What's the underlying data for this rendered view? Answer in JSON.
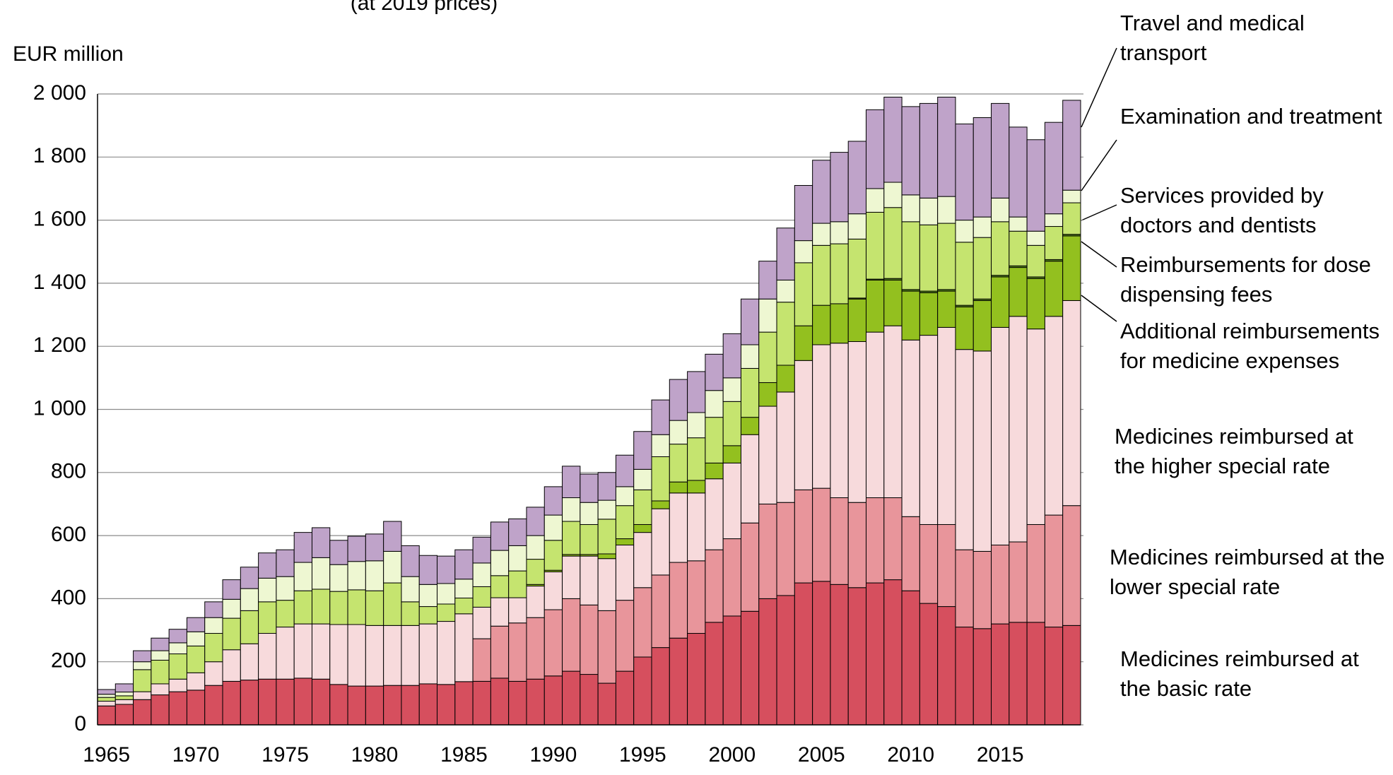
{
  "chart_data": {
    "type": "stacked_bar",
    "subtitle": "(at 2019 prices)",
    "y_label": "EUR million",
    "categories": [
      "1965",
      null,
      null,
      null,
      null,
      "1970",
      null,
      null,
      null,
      null,
      "1975",
      null,
      null,
      null,
      null,
      "1980",
      null,
      null,
      null,
      null,
      "1985",
      null,
      null,
      null,
      null,
      "1990",
      null,
      null,
      null,
      null,
      "1995",
      null,
      null,
      null,
      null,
      "2000",
      null,
      null,
      null,
      null,
      "2005",
      null,
      null,
      null,
      null,
      "2010",
      null,
      null,
      null,
      null,
      "2015",
      null,
      null,
      null,
      null
    ],
    "ylim": [
      0,
      2000
    ],
    "yticks": [
      0,
      200,
      400,
      600,
      800,
      {
        "value": 1000,
        "label": "1 000"
      },
      {
        "value": 1200,
        "label": "1 200"
      },
      {
        "value": 1400,
        "label": "1 400"
      },
      {
        "value": 1600,
        "label": "1 600"
      },
      {
        "value": 1800,
        "label": "1 800"
      },
      {
        "value": 2000,
        "label": "2 000"
      }
    ],
    "grid": true,
    "series": [
      {
        "name": "Medicines reimbursed at the basic rate",
        "color": "#d64f5e",
        "values": [
          60,
          65,
          80,
          95,
          105,
          110,
          125,
          138,
          142,
          145,
          145,
          148,
          145,
          128,
          123,
          123,
          125,
          125,
          130,
          128,
          137,
          138,
          148,
          138,
          145,
          155,
          170,
          160,
          132,
          170,
          215,
          245,
          275,
          290,
          325,
          345,
          360,
          400,
          410,
          450,
          455,
          445,
          435,
          450,
          460,
          425,
          385,
          375,
          310,
          305,
          320,
          325,
          325,
          310,
          315
        ]
      },
      {
        "name": "Medicines reimbursed at the lower special rate",
        "color": "#e8959b",
        "values": [
          0,
          0,
          0,
          0,
          0,
          0,
          0,
          0,
          0,
          0,
          0,
          0,
          0,
          0,
          0,
          0,
          0,
          0,
          0,
          0,
          0,
          135,
          165,
          185,
          195,
          210,
          230,
          220,
          230,
          225,
          220,
          230,
          240,
          230,
          230,
          245,
          280,
          300,
          295,
          295,
          295,
          275,
          270,
          270,
          260,
          235,
          250,
          260,
          245,
          245,
          250,
          255,
          310,
          355,
          380
        ]
      },
      {
        "name": "Medicines reimbursed at the higher special rate",
        "color": "#f7dadc",
        "values": [
          15,
          15,
          25,
          35,
          40,
          55,
          75,
          100,
          115,
          145,
          165,
          172,
          175,
          190,
          195,
          192,
          190,
          190,
          190,
          200,
          215,
          100,
          90,
          80,
          100,
          120,
          135,
          155,
          165,
          175,
          175,
          210,
          220,
          215,
          225,
          240,
          280,
          310,
          350,
          410,
          455,
          490,
          510,
          525,
          545,
          560,
          600,
          625,
          635,
          635,
          690,
          715,
          620,
          630,
          650
        ]
      },
      {
        "name": "Additional reimbursements for medicine expenses",
        "color": "#93c01f",
        "values": [
          0,
          0,
          0,
          0,
          0,
          0,
          0,
          0,
          0,
          0,
          0,
          0,
          0,
          0,
          0,
          0,
          0,
          0,
          0,
          0,
          0,
          0,
          0,
          0,
          5,
          5,
          5,
          5,
          15,
          20,
          25,
          25,
          35,
          40,
          50,
          55,
          55,
          75,
          85,
          110,
          125,
          125,
          135,
          165,
          145,
          155,
          135,
          115,
          135,
          160,
          160,
          155,
          160,
          175,
          205
        ]
      },
      {
        "name": "Reimbursements for dose dispensing fees",
        "color": "#5a8a1c",
        "values": [
          0,
          0,
          0,
          0,
          0,
          0,
          0,
          0,
          0,
          0,
          0,
          0,
          0,
          0,
          0,
          0,
          0,
          0,
          0,
          0,
          0,
          0,
          0,
          0,
          0,
          0,
          0,
          0,
          0,
          0,
          0,
          0,
          0,
          0,
          0,
          0,
          0,
          0,
          0,
          0,
          0,
          0,
          3,
          3,
          5,
          5,
          5,
          5,
          5,
          5,
          5,
          5,
          5,
          5,
          5
        ]
      },
      {
        "name": "Services provided by doctors and dentists",
        "color": "#c5e46f",
        "values": [
          12,
          12,
          70,
          75,
          80,
          85,
          90,
          100,
          105,
          100,
          85,
          105,
          110,
          105,
          110,
          110,
          135,
          75,
          55,
          55,
          50,
          65,
          70,
          85,
          80,
          95,
          105,
          95,
          110,
          105,
          110,
          140,
          120,
          135,
          145,
          140,
          155,
          160,
          200,
          200,
          190,
          190,
          187,
          212,
          225,
          215,
          210,
          210,
          200,
          195,
          170,
          110,
          100,
          105,
          100
        ]
      },
      {
        "name": "Examination and treatment",
        "color": "#eef7d2",
        "values": [
          10,
          12,
          25,
          30,
          35,
          45,
          50,
          60,
          70,
          75,
          75,
          90,
          100,
          85,
          90,
          95,
          100,
          80,
          70,
          65,
          60,
          75,
          80,
          80,
          75,
          80,
          75,
          70,
          60,
          60,
          65,
          70,
          75,
          80,
          85,
          75,
          75,
          105,
          70,
          70,
          70,
          70,
          80,
          75,
          80,
          85,
          85,
          85,
          70,
          65,
          75,
          45,
          45,
          40,
          40
        ]
      },
      {
        "name": "Travel and medical transport",
        "color": "#bfa3c9",
        "values": [
          15,
          26,
          35,
          40,
          43,
          45,
          50,
          62,
          68,
          80,
          85,
          95,
          95,
          77,
          80,
          85,
          95,
          98,
          92,
          87,
          93,
          82,
          90,
          85,
          90,
          90,
          100,
          90,
          88,
          100,
          120,
          110,
          130,
          130,
          115,
          140,
          145,
          120,
          165,
          175,
          200,
          220,
          230,
          250,
          270,
          280,
          300,
          315,
          305,
          315,
          300,
          285,
          290,
          290,
          285
        ]
      }
    ]
  }
}
